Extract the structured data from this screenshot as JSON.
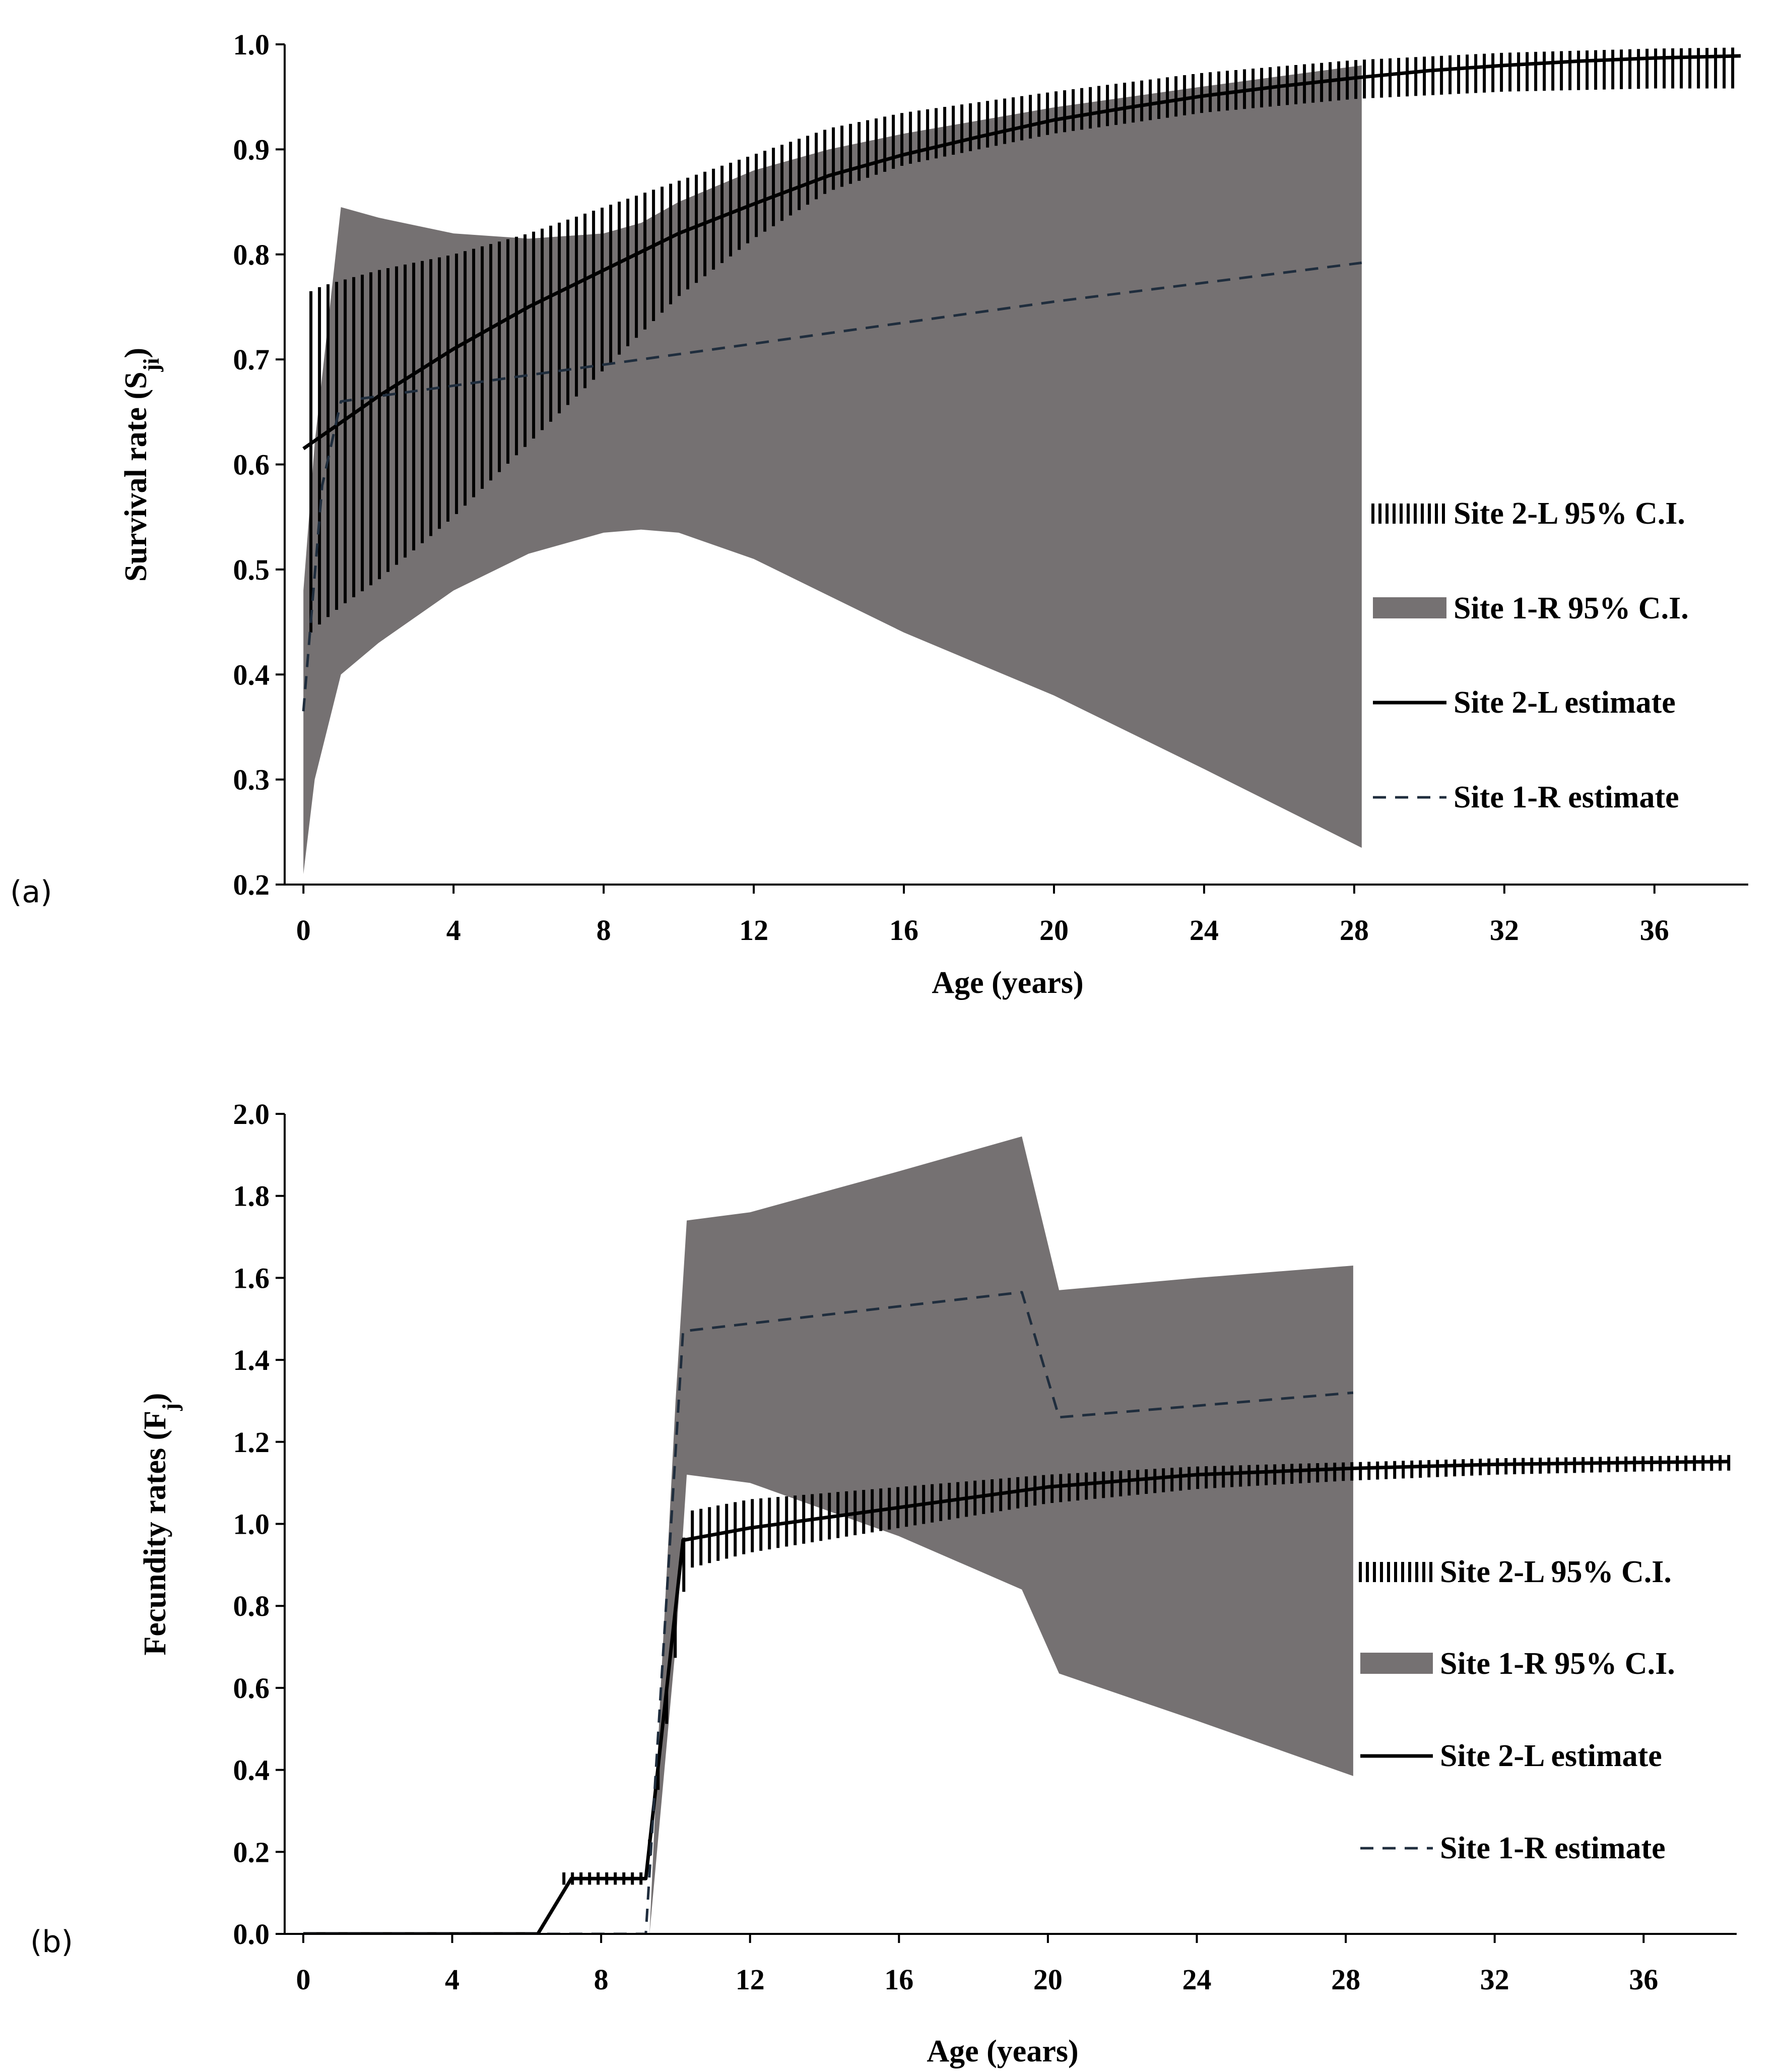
{
  "chart_data": [
    {
      "type": "line",
      "panel_label": "(a)",
      "xlabel": "Age (years)",
      "ylabel": "Survival rate (S",
      "ylabel_sub": "ji",
      "ylabel_close": ")",
      "xlim": [
        -0.5,
        38.5
      ],
      "ylim": [
        0.2,
        1.0
      ],
      "x_ticks": [
        0,
        4,
        8,
        12,
        16,
        20,
        24,
        28,
        32,
        36
      ],
      "x_tick_labels": [
        "0",
        "4",
        "8",
        "12",
        "16",
        "20",
        "24",
        "28",
        "32",
        "36"
      ],
      "y_ticks": [
        0.2,
        0.3,
        0.4,
        0.5,
        0.6,
        0.7,
        0.8,
        0.9,
        1.0
      ],
      "y_tick_labels": [
        "0.2",
        "0.3",
        "0.4",
        "0.5",
        "0.6",
        "0.7",
        "0.8",
        "0.9",
        "1.0"
      ],
      "legend": [
        {
          "label": "Site 2-L 95% C.I.",
          "kind": "hatch"
        },
        {
          "label": "Site 1-R 95% C.I.",
          "kind": "band"
        },
        {
          "label": "Site 2-L estimate",
          "kind": "solid"
        },
        {
          "label": "Site 1-R estimate",
          "kind": "dashed"
        }
      ],
      "series": [
        {
          "name": "Site 1-R 95% C.I.",
          "kind": "band",
          "color": "#757172",
          "x": [
            0,
            0.3,
            1,
            2,
            4,
            6,
            8,
            9,
            10,
            12,
            14,
            16,
            20,
            24,
            28.2
          ],
          "upper": [
            0.48,
            0.62,
            0.845,
            0.835,
            0.82,
            0.815,
            0.82,
            0.83,
            0.85,
            0.88,
            0.9,
            0.915,
            0.94,
            0.96,
            0.98
          ],
          "lower": [
            0.21,
            0.3,
            0.4,
            0.43,
            0.48,
            0.515,
            0.535,
            0.538,
            0.535,
            0.51,
            0.475,
            0.44,
            0.38,
            0.31,
            0.235
          ]
        },
        {
          "name": "Site 2-L 95% C.I.",
          "kind": "hatch",
          "color": "#000000",
          "x": [
            0.2,
            0.5,
            1,
            2,
            4,
            6,
            8,
            10,
            12,
            14,
            16,
            20,
            24,
            28,
            32,
            36,
            38.3
          ],
          "upper": [
            0.765,
            0.77,
            0.775,
            0.785,
            0.8,
            0.82,
            0.845,
            0.87,
            0.895,
            0.92,
            0.935,
            0.955,
            0.973,
            0.985,
            0.992,
            0.996,
            0.997
          ],
          "lower": [
            0.44,
            0.45,
            0.465,
            0.49,
            0.55,
            0.62,
            0.69,
            0.76,
            0.815,
            0.86,
            0.885,
            0.915,
            0.935,
            0.948,
            0.955,
            0.958,
            0.958
          ]
        },
        {
          "name": "Site 2-L estimate",
          "kind": "solid",
          "color": "#000000",
          "x": [
            0,
            1,
            2,
            4,
            6,
            8,
            10,
            12,
            14,
            16,
            18,
            20,
            22,
            24,
            26,
            28,
            30,
            32,
            34,
            36,
            38.3
          ],
          "y": [
            0.615,
            0.64,
            0.665,
            0.71,
            0.75,
            0.785,
            0.82,
            0.848,
            0.875,
            0.895,
            0.912,
            0.928,
            0.94,
            0.951,
            0.96,
            0.968,
            0.975,
            0.98,
            0.984,
            0.987,
            0.989
          ]
        },
        {
          "name": "Site 1-R estimate",
          "kind": "dashed",
          "color": "#1f2d3d",
          "x": [
            0,
            0.5,
            1,
            2,
            4,
            8,
            12,
            16,
            20,
            24,
            28.2
          ],
          "y": [
            0.365,
            0.58,
            0.66,
            0.665,
            0.675,
            0.695,
            0.715,
            0.735,
            0.755,
            0.773,
            0.792
          ]
        }
      ]
    },
    {
      "type": "line",
      "panel_label": "(b)",
      "xlabel": "Age (years)",
      "ylabel": "Fecundity rates (F",
      "ylabel_sub": "j",
      "ylabel_close": ")",
      "xlim": [
        -0.5,
        38.5
      ],
      "ylim": [
        0.0,
        2.0
      ],
      "x_ticks": [
        0,
        4,
        8,
        12,
        16,
        20,
        24,
        28,
        32,
        36
      ],
      "x_tick_labels": [
        "0",
        "4",
        "8",
        "12",
        "16",
        "20",
        "24",
        "28",
        "32",
        "36"
      ],
      "y_ticks": [
        0.0,
        0.2,
        0.4,
        0.6,
        0.8,
        1.0,
        1.2,
        1.4,
        1.6,
        1.8,
        2.0
      ],
      "y_tick_labels": [
        "0.0",
        "0.2",
        "0.4",
        "0.6",
        "0.8",
        "1.0",
        "1.2",
        "1.4",
        "1.6",
        "1.8",
        "2.0"
      ],
      "legend": [
        {
          "label": "Site 2-L 95% C.I.",
          "kind": "hatch"
        },
        {
          "label": "Site 1-R 95% C.I.",
          "kind": "band"
        },
        {
          "label": "Site 2-L estimate",
          "kind": "solid"
        },
        {
          "label": "Site 1-R estimate",
          "kind": "dashed"
        }
      ],
      "series": [
        {
          "name": "Site 1-R 95% C.I.",
          "kind": "band",
          "color": "#757172",
          "x": [
            9.3,
            9.6,
            10.0,
            10.3,
            12,
            16,
            19.3,
            20.3,
            24,
            28.2
          ],
          "upper": [
            0.0,
            0.6,
            1.3,
            1.74,
            1.76,
            1.86,
            1.945,
            1.57,
            1.6,
            1.63
          ],
          "lower": [
            0.0,
            0.3,
            0.7,
            1.12,
            1.1,
            0.97,
            0.84,
            0.635,
            0.52,
            0.385
          ]
        },
        {
          "name": "Site 2-L 95% C.I.",
          "kind": "hatch",
          "color": "#000000",
          "x": [
            7,
            9.2,
            10.3,
            12,
            16,
            20,
            24,
            28,
            32,
            36,
            38.3
          ],
          "upper": [
            0.15,
            0.15,
            1.03,
            1.06,
            1.09,
            1.12,
            1.14,
            1.15,
            1.16,
            1.165,
            1.168
          ],
          "lower": [
            0.12,
            0.12,
            0.89,
            0.93,
            0.99,
            1.05,
            1.085,
            1.105,
            1.12,
            1.128,
            1.13
          ]
        },
        {
          "name": "Site 2-L estimate",
          "kind": "solid",
          "color": "#000000",
          "x": [
            0,
            6.3,
            7.2,
            9.2,
            10.2,
            12,
            16,
            20,
            24,
            28,
            32,
            36,
            38.3
          ],
          "y": [
            0.0,
            0.0,
            0.135,
            0.135,
            0.96,
            0.99,
            1.04,
            1.09,
            1.12,
            1.135,
            1.145,
            1.15,
            1.152
          ]
        },
        {
          "name": "Site 1-R estimate",
          "kind": "dashed",
          "color": "#1f2d3d",
          "x": [
            0,
            9.2,
            10.2,
            19.3,
            20.3,
            28.2
          ],
          "y": [
            0.0,
            0.0,
            1.47,
            1.565,
            1.26,
            1.32
          ]
        }
      ]
    }
  ]
}
